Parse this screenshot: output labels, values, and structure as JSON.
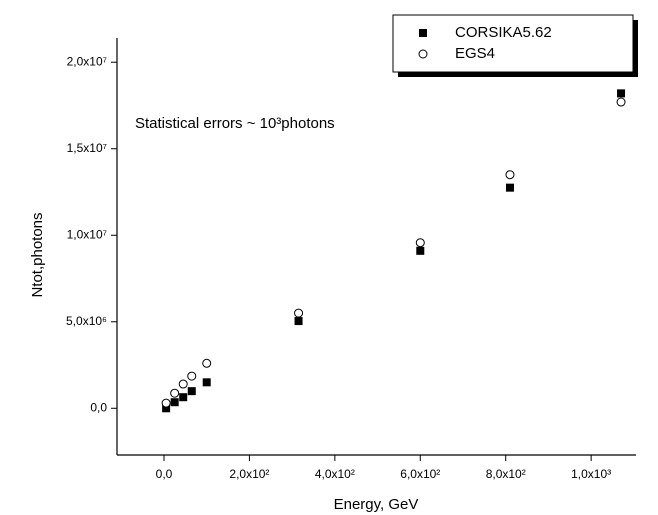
{
  "chart_data": {
    "type": "scatter",
    "xlabel": "Energy, GeV",
    "ylabel": "Ntot,photons",
    "annotation": "Statistical errors ~ 10³photons",
    "xlim": [
      -110,
      1105
    ],
    "ylim": [
      -2700000,
      21400000
    ],
    "xticks": [
      {
        "value": 0,
        "label": "0,0"
      },
      {
        "value": 200,
        "label": "2,0x10²"
      },
      {
        "value": 400,
        "label": "4,0x10²"
      },
      {
        "value": 600,
        "label": "6,0x10²"
      },
      {
        "value": 800,
        "label": "8,0x10²"
      },
      {
        "value": 1000,
        "label": "1,0x10³"
      }
    ],
    "yticks": [
      {
        "value": 0,
        "label": "0,0"
      },
      {
        "value": 5000000,
        "label": "5,0x10⁶"
      },
      {
        "value": 10000000,
        "label": "1,0x10⁷"
      },
      {
        "value": 15000000,
        "label": "1,5x10⁷"
      },
      {
        "value": 20000000,
        "label": "2,0x10⁷"
      }
    ],
    "legend": "upper right",
    "series": [
      {
        "name": "CORSIKA5.62",
        "color": "#000000",
        "marker": "square",
        "x": [
          5,
          25,
          45,
          65,
          100,
          315,
          600,
          810,
          1070
        ],
        "values": [
          0,
          350000,
          640000,
          990000,
          1500000,
          5040000,
          9100000,
          12750000,
          18200000
        ]
      },
      {
        "name": "EGS4",
        "color": "#000000",
        "marker": "circle",
        "x": [
          5,
          25,
          45,
          65,
          100,
          315,
          600,
          810,
          1070
        ],
        "values": [
          300000,
          870000,
          1400000,
          1860000,
          2600000,
          5500000,
          9570000,
          13500000,
          17700000
        ]
      }
    ]
  }
}
